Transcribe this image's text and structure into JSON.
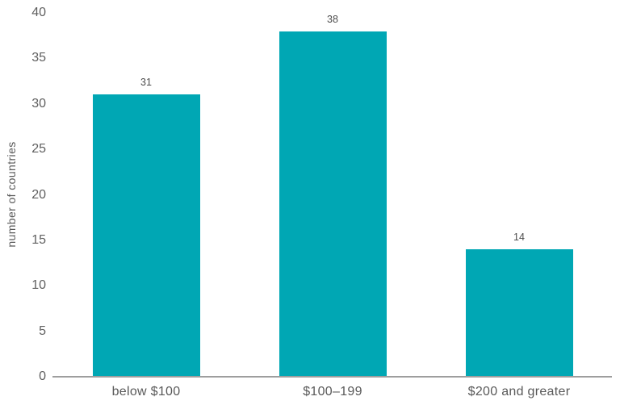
{
  "chart_data": {
    "type": "bar",
    "categories": [
      "below $100",
      "$100–199",
      "$200 and greater"
    ],
    "values": [
      31,
      38,
      14
    ],
    "value_labels": [
      "31",
      "38",
      "14"
    ],
    "title": "",
    "xlabel": "",
    "ylabel": "number of countries",
    "ylim": [
      0,
      40
    ],
    "yticks": [
      0,
      5,
      10,
      15,
      20,
      25,
      30,
      35,
      40
    ],
    "grid": false,
    "legend_position": "none",
    "colors": {
      "bar": "#00a7b4",
      "axis_line": "#9e9e9e",
      "tick_label": "#5f5f5f",
      "value_label": "#4d4d4d",
      "category_label": "#595959",
      "background": "#ffffff"
    }
  }
}
